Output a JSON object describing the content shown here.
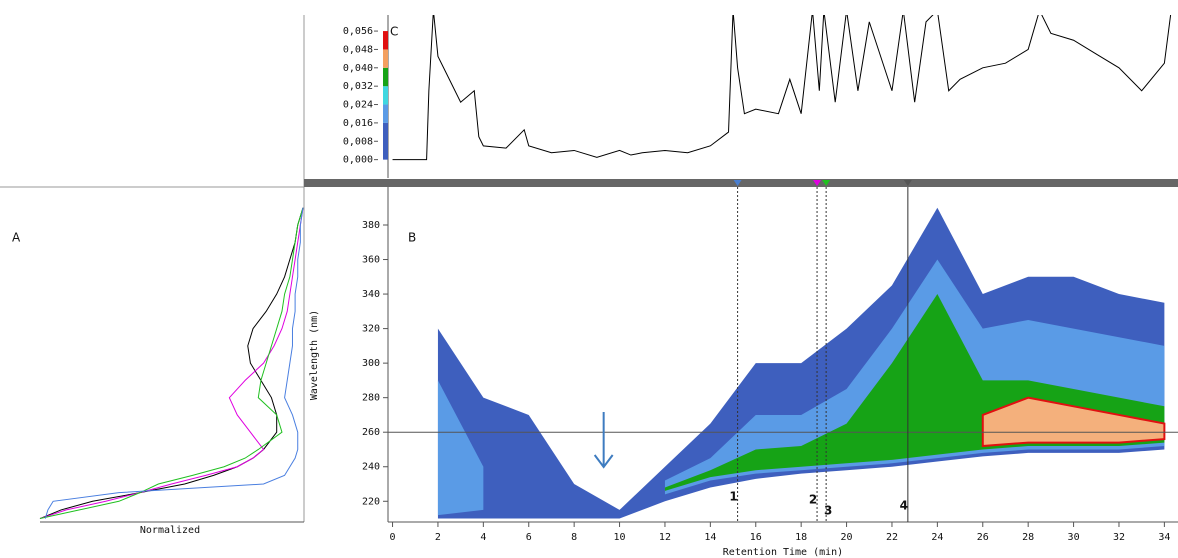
{
  "chart_data": [
    {
      "type": "line",
      "label": "C",
      "x": [
        0,
        1.5,
        1.6,
        1.8,
        2.0,
        2.5,
        3,
        3.6,
        3.8,
        4,
        5,
        5.8,
        6,
        7,
        8,
        9,
        10,
        10.5,
        11,
        12,
        13,
        14,
        14.8,
        15,
        15.2,
        15.5,
        16,
        17,
        17.5,
        18,
        18.5,
        18.8,
        19,
        19.5,
        20,
        20.5,
        21,
        22,
        22.5,
        23,
        23.5,
        24,
        24.5,
        25,
        26,
        27,
        28,
        28.5,
        29,
        30,
        31,
        32,
        33,
        34,
        34.3
      ],
      "series": [
        {
          "color": "#000000",
          "values": [
            0.0,
            0.0,
            0.03,
            0.065,
            0.045,
            0.035,
            0.025,
            0.03,
            0.01,
            0.006,
            0.005,
            0.013,
            0.006,
            0.003,
            0.004,
            0.001,
            0.004,
            0.002,
            0.003,
            0.004,
            0.003,
            0.006,
            0.012,
            0.065,
            0.04,
            0.02,
            0.022,
            0.02,
            0.035,
            0.02,
            0.065,
            0.03,
            0.065,
            0.025,
            0.065,
            0.03,
            0.06,
            0.03,
            0.065,
            0.025,
            0.06,
            0.065,
            0.03,
            0.035,
            0.04,
            0.042,
            0.048,
            0.065,
            0.055,
            0.052,
            0.046,
            0.04,
            0.03,
            0.042,
            0.065
          ]
        }
      ],
      "xlim": [
        -0.2,
        34.6
      ],
      "ylim": [
        -0.008,
        0.063
      ],
      "yticks": [
        {
          "value": 0,
          "label": "0,000"
        },
        {
          "value": 0.008,
          "label": "0,008"
        },
        {
          "value": 0.016,
          "label": "0,016"
        },
        {
          "value": 0.024,
          "label": "0,024"
        },
        {
          "value": 0.032,
          "label": "0,032"
        },
        {
          "value": 0.04,
          "label": "0,040"
        },
        {
          "value": 0.048,
          "label": "0,048"
        },
        {
          "value": 0.056,
          "label": "0,056"
        }
      ],
      "colorbar": {
        "stops": [
          0,
          0.016,
          0.024,
          0.032,
          0.04,
          0.048,
          0.056
        ],
        "colors": [
          "#3e5fbe",
          "#5a9be6",
          "#3fd7e0",
          "#16a316",
          "#f4a060",
          "#e01010"
        ]
      }
    },
    {
      "type": "spectra",
      "label": "A",
      "xlabel": "Normalized",
      "y": [
        210,
        215,
        220,
        225,
        230,
        235,
        240,
        245,
        250,
        260,
        270,
        280,
        290,
        300,
        310,
        320,
        330,
        340,
        350,
        360,
        370,
        380,
        390
      ],
      "series": [
        {
          "color": "#000000",
          "values": [
            0,
            0.08,
            0.2,
            0.38,
            0.55,
            0.66,
            0.75,
            0.81,
            0.85,
            0.9,
            0.9,
            0.88,
            0.84,
            0.8,
            0.79,
            0.81,
            0.86,
            0.9,
            0.93,
            0.95,
            0.97,
            0.98,
            1
          ]
        },
        {
          "color": "#e000e0",
          "values": [
            0,
            0.1,
            0.25,
            0.38,
            0.5,
            0.63,
            0.75,
            0.81,
            0.85,
            0.8,
            0.75,
            0.72,
            0.78,
            0.85,
            0.89,
            0.92,
            0.94,
            0.95,
            0.96,
            0.97,
            0.98,
            0.99,
            1
          ]
        },
        {
          "color": "#20c020",
          "values": [
            0,
            0.15,
            0.3,
            0.38,
            0.45,
            0.58,
            0.7,
            0.78,
            0.83,
            0.92,
            0.9,
            0.83,
            0.84,
            0.86,
            0.88,
            0.9,
            0.92,
            0.93,
            0.95,
            0.96,
            0.97,
            0.98,
            1
          ]
        },
        {
          "color": "#4a7fe0",
          "values": [
            0.02,
            0.03,
            0.05,
            0.3,
            0.85,
            0.93,
            0.95,
            0.97,
            0.98,
            0.98,
            0.96,
            0.93,
            0.94,
            0.95,
            0.96,
            0.96,
            0.97,
            0.97,
            0.98,
            0.98,
            0.99,
            0.99,
            1
          ]
        }
      ],
      "xlim": [
        0,
        1
      ]
    },
    {
      "type": "contour",
      "label": "B",
      "ylabel": "Wavelength (nm)",
      "xlabel": "Retention Time (min)",
      "x": [
        2,
        4,
        6,
        8,
        10,
        12,
        14,
        16,
        18,
        20,
        22,
        24,
        26,
        28,
        30,
        32,
        34
      ],
      "bands": [
        {
          "color": "#3e5fbe",
          "lower": [
            210,
            210,
            210,
            210,
            210,
            220,
            228,
            233,
            236,
            238,
            240,
            243,
            246,
            248,
            248,
            248,
            250
          ],
          "upper": [
            320,
            280,
            270,
            230,
            215,
            240,
            265,
            300,
            300,
            320,
            345,
            390,
            340,
            350,
            350,
            340,
            335
          ]
        },
        {
          "color": "#5a9be6",
          "lower": [
            212,
            215,
            null,
            null,
            null,
            224,
            232,
            236,
            238,
            240,
            242,
            245,
            248,
            250,
            250,
            250,
            252
          ],
          "upper": [
            290,
            240,
            null,
            null,
            null,
            232,
            245,
            270,
            270,
            285,
            320,
            360,
            320,
            325,
            320,
            315,
            310
          ]
        },
        {
          "color": "#16a316",
          "lower": [
            214,
            null,
            null,
            null,
            null,
            226,
            234,
            238,
            240,
            242,
            244,
            247,
            250,
            252,
            252,
            252,
            254
          ],
          "upper": [
            280,
            null,
            null,
            null,
            null,
            228,
            238,
            250,
            252,
            265,
            300,
            340,
            290,
            290,
            285,
            280,
            275
          ]
        },
        {
          "color": "#f4b07c",
          "lower": [
            null,
            null,
            null,
            null,
            null,
            null,
            null,
            null,
            null,
            null,
            null,
            null,
            252,
            254,
            254,
            254,
            256
          ],
          "upper": [
            null,
            null,
            null,
            null,
            null,
            null,
            null,
            null,
            null,
            null,
            null,
            null,
            270,
            280,
            275,
            270,
            265
          ]
        }
      ],
      "xlim": [
        -0.2,
        34.6
      ],
      "ylim": [
        208,
        402
      ],
      "xticks": [
        0,
        2,
        4,
        6,
        8,
        10,
        12,
        14,
        16,
        18,
        20,
        22,
        24,
        26,
        28,
        30,
        32,
        34
      ],
      "yticks": [
        220,
        240,
        260,
        280,
        300,
        320,
        340,
        360,
        380
      ],
      "hline": 260,
      "markers": [
        {
          "x": 15.2,
          "label": "1",
          "color": "#4a7fd0"
        },
        {
          "x": 18.7,
          "label": "2",
          "color": "#e000e0"
        },
        {
          "x": 19.1,
          "label": "3",
          "color": "#20c020"
        },
        {
          "x": 22.7,
          "label": "4",
          "color": "#555555"
        }
      ],
      "arrow_x": 9.3
    }
  ]
}
